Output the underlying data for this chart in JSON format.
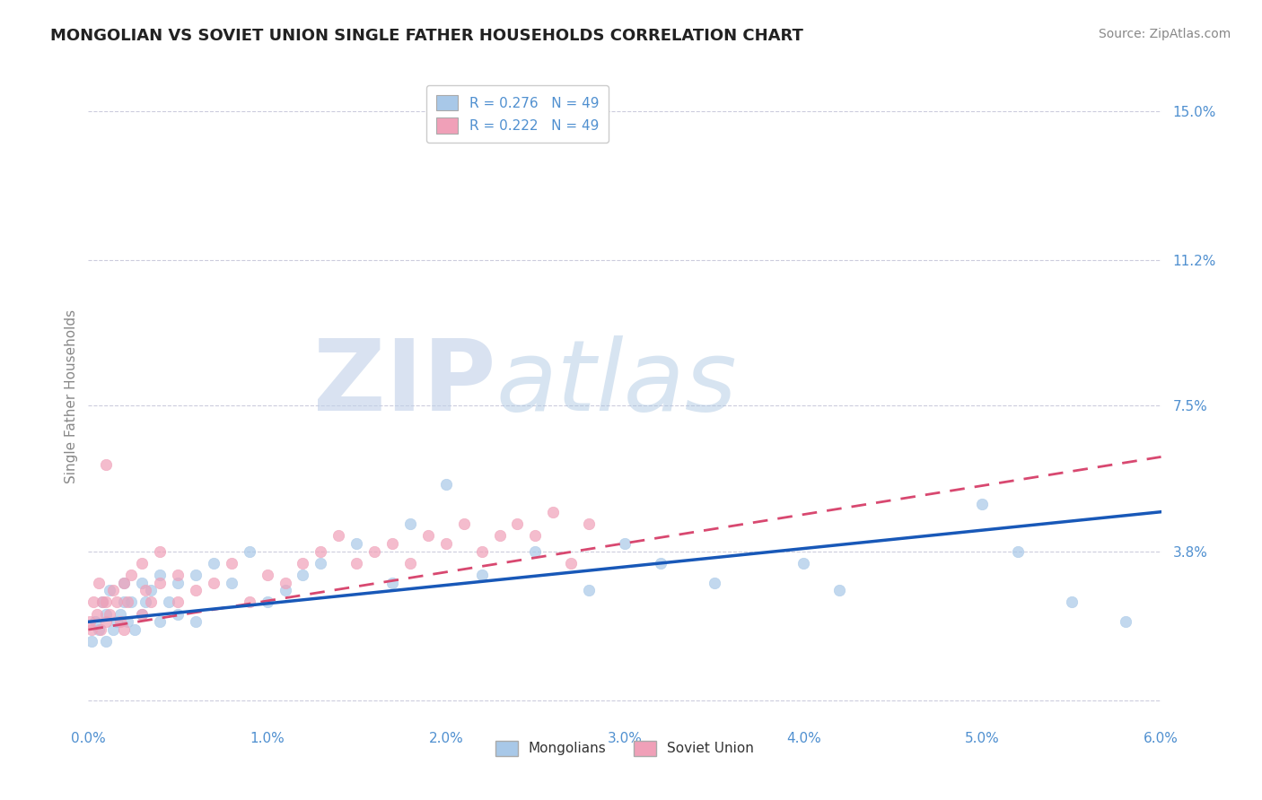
{
  "title": "MONGOLIAN VS SOVIET UNION SINGLE FATHER HOUSEHOLDS CORRELATION CHART",
  "source_text": "Source: ZipAtlas.com",
  "ylabel": "Single Father Households",
  "watermark_zip": "ZIP",
  "watermark_atlas": "atlas",
  "xlim": [
    0.0,
    0.06
  ],
  "ylim": [
    -0.005,
    0.16
  ],
  "yticks": [
    0.0,
    0.038,
    0.075,
    0.112,
    0.15
  ],
  "ytick_labels": [
    "",
    "3.8%",
    "7.5%",
    "11.2%",
    "15.0%"
  ],
  "xticks": [
    0.0,
    0.01,
    0.02,
    0.03,
    0.04,
    0.05,
    0.06
  ],
  "xtick_labels": [
    "0.0%",
    "1.0%",
    "2.0%",
    "3.0%",
    "4.0%",
    "5.0%",
    "6.0%"
  ],
  "legend_label1": "R = 0.276   N = 49",
  "legend_label2": "R = 0.222   N = 49",
  "legend_label_bottom1": "Mongolians",
  "legend_label_bottom2": "Soviet Union",
  "color_mongolian": "#A8C8E8",
  "color_soviet": "#F0A0B8",
  "color_trend_mongolian": "#1858B8",
  "color_trend_soviet": "#D84870",
  "axis_label_color": "#5090D0",
  "tick_color": "#5090D0",
  "background_color": "#FFFFFF",
  "grid_color": "#CCCCDD",
  "trend_mongolian_x0": 0.0,
  "trend_mongolian_y0": 0.02,
  "trend_mongolian_x1": 0.06,
  "trend_mongolian_y1": 0.048,
  "trend_soviet_x0": 0.0,
  "trend_soviet_y0": 0.018,
  "trend_soviet_x1": 0.06,
  "trend_soviet_y1": 0.062,
  "mongolians_x": [
    0.0002,
    0.0004,
    0.0006,
    0.0008,
    0.001,
    0.001,
    0.0012,
    0.0014,
    0.0016,
    0.0018,
    0.002,
    0.002,
    0.0022,
    0.0024,
    0.0026,
    0.003,
    0.003,
    0.0032,
    0.0035,
    0.004,
    0.004,
    0.0045,
    0.005,
    0.005,
    0.006,
    0.006,
    0.007,
    0.008,
    0.009,
    0.01,
    0.011,
    0.012,
    0.013,
    0.015,
    0.017,
    0.018,
    0.02,
    0.022,
    0.025,
    0.028,
    0.03,
    0.032,
    0.035,
    0.04,
    0.042,
    0.05,
    0.052,
    0.055,
    0.058
  ],
  "mongolians_y": [
    0.015,
    0.02,
    0.018,
    0.025,
    0.022,
    0.015,
    0.028,
    0.018,
    0.02,
    0.022,
    0.025,
    0.03,
    0.02,
    0.025,
    0.018,
    0.022,
    0.03,
    0.025,
    0.028,
    0.032,
    0.02,
    0.025,
    0.03,
    0.022,
    0.032,
    0.02,
    0.035,
    0.03,
    0.038,
    0.025,
    0.028,
    0.032,
    0.035,
    0.04,
    0.03,
    0.045,
    0.055,
    0.032,
    0.038,
    0.028,
    0.04,
    0.035,
    0.03,
    0.035,
    0.028,
    0.05,
    0.038,
    0.025,
    0.02
  ],
  "soviet_x": [
    0.0001,
    0.0002,
    0.0003,
    0.0005,
    0.0006,
    0.0007,
    0.0008,
    0.001,
    0.001,
    0.001,
    0.0012,
    0.0014,
    0.0016,
    0.0018,
    0.002,
    0.002,
    0.0022,
    0.0024,
    0.003,
    0.003,
    0.0032,
    0.0035,
    0.004,
    0.004,
    0.005,
    0.005,
    0.006,
    0.007,
    0.008,
    0.009,
    0.01,
    0.011,
    0.012,
    0.013,
    0.014,
    0.015,
    0.016,
    0.017,
    0.018,
    0.019,
    0.02,
    0.021,
    0.022,
    0.023,
    0.024,
    0.025,
    0.026,
    0.027,
    0.028
  ],
  "soviet_y": [
    0.02,
    0.018,
    0.025,
    0.022,
    0.03,
    0.018,
    0.025,
    0.02,
    0.025,
    0.06,
    0.022,
    0.028,
    0.025,
    0.02,
    0.03,
    0.018,
    0.025,
    0.032,
    0.022,
    0.035,
    0.028,
    0.025,
    0.03,
    0.038,
    0.025,
    0.032,
    0.028,
    0.03,
    0.035,
    0.025,
    0.032,
    0.03,
    0.035,
    0.038,
    0.042,
    0.035,
    0.038,
    0.04,
    0.035,
    0.042,
    0.04,
    0.045,
    0.038,
    0.042,
    0.045,
    0.042,
    0.048,
    0.035,
    0.045
  ]
}
